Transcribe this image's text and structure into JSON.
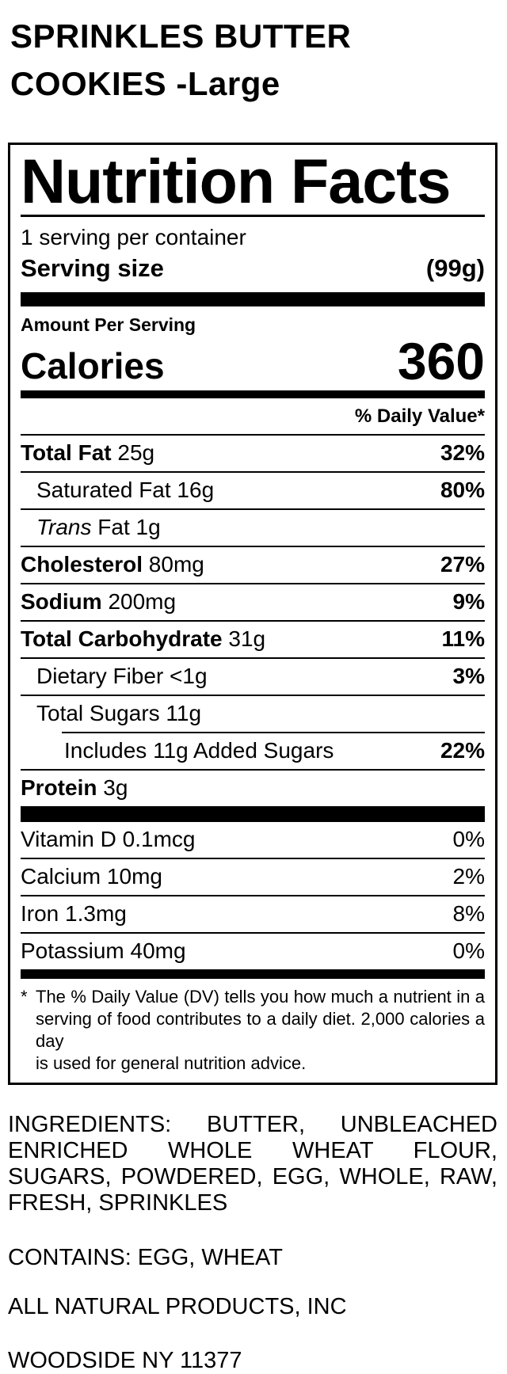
{
  "colors": {
    "text": "#000000",
    "background": "#ffffff"
  },
  "product": {
    "title": "SPRINKLES BUTTER COOKIES -Large"
  },
  "label": {
    "heading": "Nutrition Facts",
    "servings_per_container": "1 serving per container",
    "serving_size_label": "Serving size",
    "serving_size_value": "(99g)",
    "amount_per_serving": "Amount Per Serving",
    "calories_label": "Calories",
    "calories_value": "360",
    "daily_value_header": "% Daily Value*",
    "nutrients": [
      {
        "name": "Total Fat",
        "amount": "25g",
        "dv": "32%",
        "bold": true,
        "indent": 0
      },
      {
        "name": "Saturated Fat",
        "amount": "16g",
        "dv": "80%",
        "bold": false,
        "indent": 1
      },
      {
        "italic_prefix": "Trans",
        "name": "Fat",
        "amount": "1g",
        "dv": "",
        "bold": false,
        "indent": 1
      },
      {
        "name": "Cholesterol",
        "amount": "80mg",
        "dv": "27%",
        "bold": true,
        "indent": 0
      },
      {
        "name": "Sodium",
        "amount": "200mg",
        "dv": "9%",
        "bold": true,
        "indent": 0
      },
      {
        "name": "Total Carbohydrate",
        "amount": "31g",
        "dv": "11%",
        "bold": true,
        "indent": 0
      },
      {
        "name": "Dietary Fiber",
        "amount": "<1g",
        "dv": "3%",
        "bold": false,
        "indent": 1
      },
      {
        "name": "Total Sugars",
        "amount": "11g",
        "dv": "",
        "bold": false,
        "indent": 1
      },
      {
        "name": "Includes 11g Added Sugars",
        "amount": "",
        "dv": "22%",
        "bold": false,
        "indent": 2,
        "rule_indent": true
      },
      {
        "name": "Protein",
        "amount": "3g",
        "dv": "",
        "bold": true,
        "indent": 0
      }
    ],
    "micronutrients": [
      {
        "name": "Vitamin D",
        "amount": "0.1mcg",
        "dv": "0%"
      },
      {
        "name": "Calcium",
        "amount": "10mg",
        "dv": "2%"
      },
      {
        "name": "Iron",
        "amount": "1.3mg",
        "dv": "8%"
      },
      {
        "name": "Potassium",
        "amount": "40mg",
        "dv": "0%"
      }
    ],
    "footnote": {
      "marker": "*",
      "lines": [
        "The % Daily Value (DV) tells you how much a nutrient in a",
        "serving of food contributes to a daily diet. 2,000 calories a day",
        "is used for general nutrition advice."
      ]
    }
  },
  "details": {
    "ingredients_lines": [
      "INGREDIENTS: BUTTER, UNBLEACHED",
      "ENRICHED WHOLE WHEAT FLOUR,",
      "SUGARS, POWDERED, EGG, WHOLE, RAW,",
      "FRESH, SPRINKLES"
    ],
    "contains": "CONTAINS: EGG, WHEAT",
    "manufacturer": "ALL NATURAL PRODUCTS, INC",
    "location": "WOODSIDE NY 11377"
  }
}
